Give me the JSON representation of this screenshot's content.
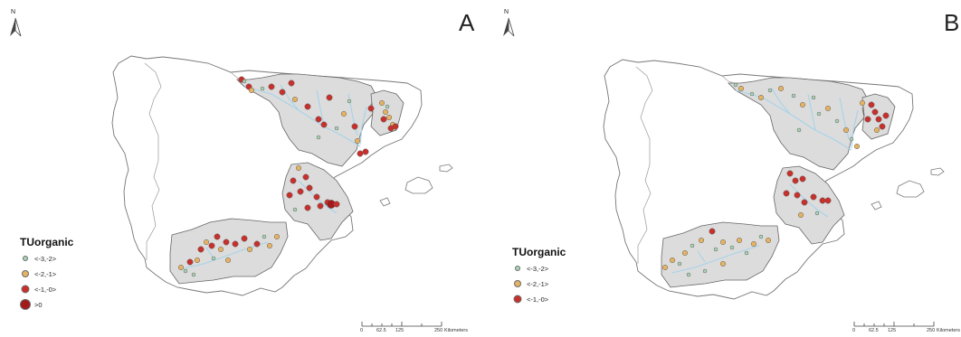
{
  "legend_title": "TUorganic",
  "north_label": "N",
  "scale": {
    "ticks": [
      "0",
      "62.5",
      "125",
      "250"
    ],
    "unit": "Kilometers"
  },
  "legend_classes": {
    "c1": {
      "label": "<-3,-2>",
      "color": "#a9d6b5"
    },
    "c2": {
      "label": "<-2,-1>",
      "color": "#e5b363"
    },
    "c3": {
      "label": "<-1,-0>",
      "color": "#c8302c"
    },
    "c4": {
      "label": ">0",
      "color": "#a31a1a"
    }
  },
  "colors": {
    "basin_fill": "#dcdcdc",
    "river": "#a6d3ea",
    "outline": "#666666"
  },
  "panels": [
    {
      "letter": "A",
      "legend_keys": [
        "c1",
        "c2",
        "c3",
        "c4"
      ]
    },
    {
      "letter": "B",
      "legend_keys": [
        "c1",
        "c2",
        "c3"
      ]
    }
  ]
}
